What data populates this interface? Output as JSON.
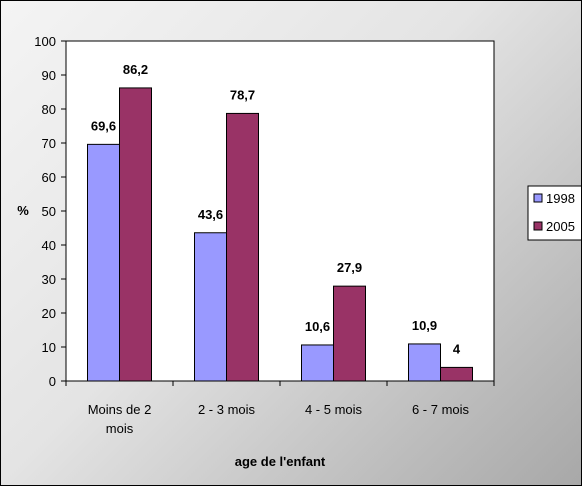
{
  "chart_data": {
    "type": "bar",
    "categories": [
      [
        "Moins de 2",
        "mois"
      ],
      [
        "2 - 3 mois"
      ],
      [
        "4 - 5 mois"
      ],
      [
        "6 - 7 mois"
      ]
    ],
    "series": [
      {
        "name": "1998",
        "values": [
          69.6,
          43.6,
          10.6,
          10.9
        ],
        "labels": [
          "69,6",
          "43,6",
          "10,6",
          "10,9"
        ],
        "color": "#9999ff"
      },
      {
        "name": "2005",
        "values": [
          86.2,
          78.7,
          27.9,
          4
        ],
        "labels": [
          "86,2",
          "78,7",
          "27,9",
          "4"
        ],
        "color": "#993366"
      }
    ],
    "title": "",
    "xlabel": "age de l'enfant",
    "ylabel": "%",
    "ylim": [
      0,
      100
    ],
    "yticks": [
      0,
      10,
      20,
      30,
      40,
      50,
      60,
      70,
      80,
      90,
      100
    ],
    "grid": false,
    "legend_position": "right",
    "plot_background": "#ffffff"
  }
}
